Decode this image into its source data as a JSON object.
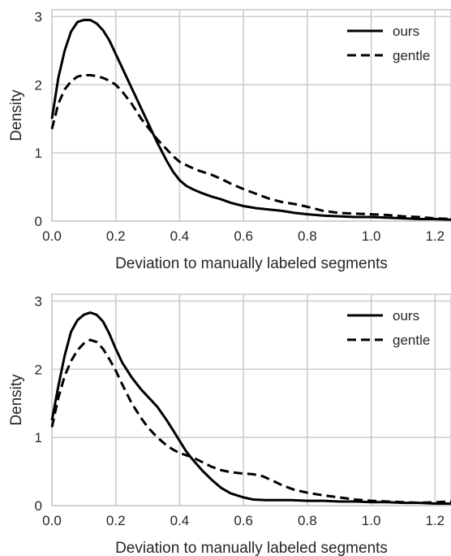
{
  "chart_data": [
    {
      "type": "line",
      "xlabel": "Deviation to manually labeled segments",
      "ylabel": "Density",
      "xlim": [
        0,
        1.25
      ],
      "ylim": [
        0,
        3.1
      ],
      "xticks": [
        "0.0",
        "0.2",
        "0.4",
        "0.6",
        "0.8",
        "1.0",
        "1.2"
      ],
      "yticks": [
        "0",
        "1",
        "2",
        "3"
      ],
      "grid": true,
      "legend": "top-right",
      "series": [
        {
          "name": "ours",
          "style": "solid",
          "x": [
            0,
            0.02,
            0.04,
            0.06,
            0.08,
            0.1,
            0.12,
            0.14,
            0.16,
            0.18,
            0.2,
            0.22,
            0.25,
            0.28,
            0.3,
            0.33,
            0.36,
            0.38,
            0.4,
            0.42,
            0.44,
            0.47,
            0.5,
            0.53,
            0.56,
            0.6,
            0.64,
            0.68,
            0.72,
            0.76,
            0.8,
            0.85,
            0.9,
            0.95,
            1.0,
            1.05,
            1.1,
            1.15,
            1.2,
            1.25
          ],
          "y": [
            1.5,
            2.1,
            2.5,
            2.78,
            2.92,
            2.95,
            2.95,
            2.9,
            2.8,
            2.65,
            2.45,
            2.25,
            1.95,
            1.65,
            1.45,
            1.15,
            0.88,
            0.72,
            0.6,
            0.52,
            0.47,
            0.41,
            0.36,
            0.32,
            0.27,
            0.22,
            0.19,
            0.17,
            0.15,
            0.12,
            0.1,
            0.08,
            0.07,
            0.06,
            0.06,
            0.05,
            0.04,
            0.03,
            0.03,
            0.02
          ]
        },
        {
          "name": "gentle",
          "style": "dashed",
          "x": [
            0,
            0.02,
            0.04,
            0.06,
            0.08,
            0.1,
            0.12,
            0.14,
            0.16,
            0.18,
            0.2,
            0.22,
            0.25,
            0.28,
            0.3,
            0.33,
            0.36,
            0.38,
            0.4,
            0.43,
            0.46,
            0.5,
            0.53,
            0.56,
            0.6,
            0.64,
            0.68,
            0.72,
            0.76,
            0.8,
            0.85,
            0.9,
            0.95,
            1.0,
            1.05,
            1.1,
            1.15,
            1.2,
            1.25
          ],
          "y": [
            1.35,
            1.72,
            1.93,
            2.05,
            2.12,
            2.14,
            2.14,
            2.13,
            2.1,
            2.06,
            2.0,
            1.9,
            1.72,
            1.5,
            1.38,
            1.2,
            1.05,
            0.95,
            0.87,
            0.8,
            0.74,
            0.68,
            0.62,
            0.55,
            0.47,
            0.4,
            0.33,
            0.28,
            0.25,
            0.21,
            0.15,
            0.12,
            0.11,
            0.1,
            0.09,
            0.07,
            0.06,
            0.04,
            0.03
          ]
        }
      ]
    },
    {
      "type": "line",
      "xlabel": "Deviation to manually labeled segments",
      "ylabel": "Density",
      "xlim": [
        0,
        1.25
      ],
      "ylim": [
        0,
        3.1
      ],
      "xticks": [
        "0.0",
        "0.2",
        "0.4",
        "0.6",
        "0.8",
        "1.0",
        "1.2"
      ],
      "yticks": [
        "0",
        "1",
        "2",
        "3"
      ],
      "grid": true,
      "legend": "top-right",
      "series": [
        {
          "name": "ours",
          "style": "solid",
          "x": [
            0,
            0.02,
            0.04,
            0.06,
            0.08,
            0.1,
            0.12,
            0.14,
            0.16,
            0.18,
            0.2,
            0.22,
            0.25,
            0.28,
            0.3,
            0.33,
            0.36,
            0.38,
            0.4,
            0.42,
            0.44,
            0.47,
            0.5,
            0.53,
            0.56,
            0.6,
            0.63,
            0.67,
            0.7,
            0.75,
            0.8,
            0.85,
            0.9,
            0.95,
            1.0,
            1.05,
            1.1,
            1.15,
            1.2,
            1.25
          ],
          "y": [
            1.25,
            1.75,
            2.2,
            2.55,
            2.72,
            2.8,
            2.83,
            2.8,
            2.7,
            2.52,
            2.3,
            2.1,
            1.88,
            1.7,
            1.6,
            1.45,
            1.25,
            1.1,
            0.95,
            0.8,
            0.68,
            0.52,
            0.38,
            0.26,
            0.18,
            0.12,
            0.09,
            0.08,
            0.08,
            0.08,
            0.07,
            0.07,
            0.06,
            0.06,
            0.05,
            0.05,
            0.04,
            0.04,
            0.03,
            0.03
          ]
        },
        {
          "name": "gentle",
          "style": "dashed",
          "x": [
            0,
            0.02,
            0.04,
            0.06,
            0.08,
            0.1,
            0.12,
            0.14,
            0.16,
            0.18,
            0.2,
            0.22,
            0.25,
            0.28,
            0.3,
            0.33,
            0.36,
            0.38,
            0.4,
            0.42,
            0.44,
            0.47,
            0.5,
            0.53,
            0.56,
            0.6,
            0.63,
            0.66,
            0.69,
            0.72,
            0.76,
            0.8,
            0.85,
            0.9,
            0.95,
            1.0,
            1.05,
            1.1,
            1.15,
            1.2,
            1.25
          ],
          "y": [
            1.15,
            1.58,
            1.9,
            2.12,
            2.28,
            2.38,
            2.43,
            2.4,
            2.3,
            2.15,
            1.98,
            1.78,
            1.5,
            1.28,
            1.15,
            1.0,
            0.88,
            0.82,
            0.77,
            0.74,
            0.71,
            0.64,
            0.57,
            0.52,
            0.49,
            0.47,
            0.46,
            0.43,
            0.37,
            0.3,
            0.23,
            0.19,
            0.15,
            0.12,
            0.09,
            0.07,
            0.06,
            0.05,
            0.04,
            0.05,
            0.06
          ]
        }
      ]
    }
  ]
}
